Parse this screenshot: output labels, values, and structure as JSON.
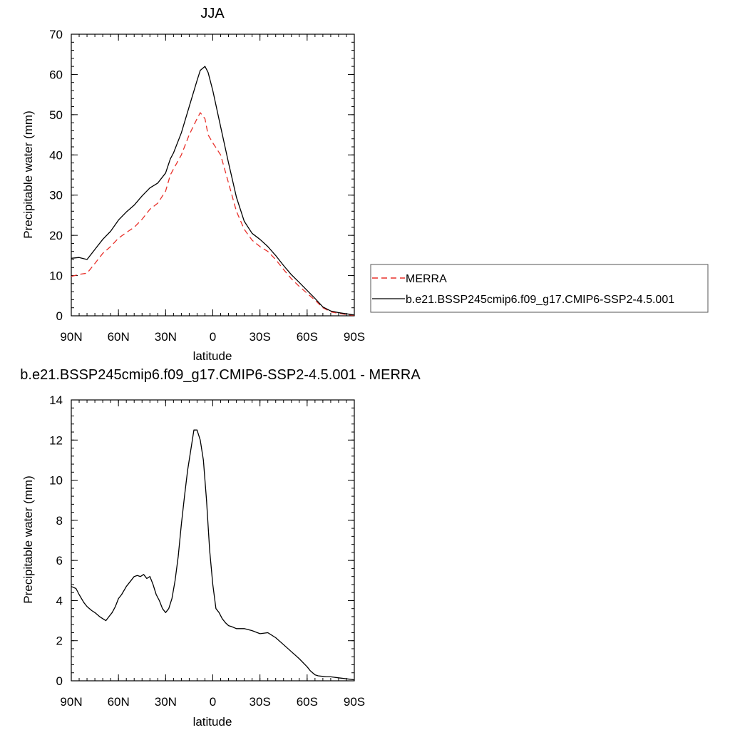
{
  "chart_data": [
    {
      "type": "line",
      "title": "JJA",
      "xlabel": "latitude",
      "ylabel": "Precipitable water (mm)",
      "xlim": [
        90,
        -90
      ],
      "ylim": [
        0,
        70
      ],
      "xticks": [
        90,
        60,
        30,
        0,
        -30,
        -60,
        -90
      ],
      "xticklabels": [
        "90N",
        "60N",
        "30N",
        "0",
        "30S",
        "60S",
        "90S"
      ],
      "yticks": [
        0,
        10,
        20,
        30,
        40,
        50,
        60,
        70
      ],
      "yticklabels": [
        "0",
        "10",
        "20",
        "30",
        "40",
        "50",
        "60",
        "70"
      ],
      "legend": "right-middle",
      "series": [
        {
          "name": "MERRA",
          "color": "#e8302a",
          "dash": "dashed",
          "x": [
            90,
            85,
            80,
            75,
            70,
            65,
            60,
            55,
            50,
            45,
            40,
            35,
            30,
            27,
            25,
            20,
            15,
            10,
            8,
            5,
            3,
            0,
            -5,
            -10,
            -15,
            -20,
            -25,
            -30,
            -35,
            -40,
            -45,
            -50,
            -55,
            -60,
            -65,
            -70,
            -75,
            -80,
            -85,
            -90
          ],
          "y": [
            9.8,
            10.3,
            10.6,
            13.0,
            15.5,
            17.2,
            19.3,
            20.7,
            22.0,
            24.0,
            26.5,
            28.0,
            31.0,
            35.0,
            36.5,
            40.0,
            45.0,
            49.0,
            50.5,
            49.0,
            45.0,
            43.0,
            40.0,
            33.0,
            26.0,
            21.5,
            18.8,
            17.2,
            16.0,
            14.0,
            11.5,
            9.2,
            7.3,
            5.6,
            3.9,
            2.0,
            1.0,
            0.6,
            0.3,
            0.1
          ]
        },
        {
          "name": "b.e21.BSSP245cmip6.f09_g17.CMIP6-SSP2-4.5.001",
          "color": "#000000",
          "dash": "solid",
          "x": [
            90,
            85,
            80,
            75,
            70,
            65,
            60,
            55,
            50,
            45,
            40,
            35,
            30,
            27,
            25,
            20,
            15,
            10,
            8,
            5,
            3,
            0,
            -5,
            -10,
            -15,
            -20,
            -25,
            -30,
            -35,
            -40,
            -45,
            -50,
            -55,
            -60,
            -65,
            -70,
            -75,
            -80,
            -85,
            -90
          ],
          "y": [
            14.3,
            14.5,
            14.0,
            16.5,
            19.0,
            21.0,
            23.8,
            25.8,
            27.5,
            29.8,
            31.8,
            33.0,
            35.5,
            39.0,
            40.5,
            45.5,
            52.0,
            58.5,
            61.0,
            62.0,
            60.5,
            56.0,
            47.0,
            38.0,
            29.5,
            23.5,
            20.5,
            19.0,
            17.2,
            15.0,
            12.5,
            10.2,
            8.3,
            6.3,
            4.3,
            2.2,
            1.2,
            0.8,
            0.5,
            0.2
          ]
        }
      ]
    },
    {
      "type": "line",
      "title": "b.e21.BSSP245cmip6.f09_g17.CMIP6-SSP2-4.5.001 - MERRA",
      "xlabel": "latitude",
      "ylabel": "Precipitable water (mm)",
      "xlim": [
        90,
        -90
      ],
      "ylim": [
        0,
        14
      ],
      "xticks": [
        90,
        60,
        30,
        0,
        -30,
        -60,
        -90
      ],
      "xticklabels": [
        "90N",
        "60N",
        "30N",
        "0",
        "30S",
        "60S",
        "90S"
      ],
      "yticks": [
        0,
        2,
        4,
        6,
        8,
        10,
        12,
        14
      ],
      "yticklabels": [
        "0",
        "2",
        "4",
        "6",
        "8",
        "10",
        "12",
        "14"
      ],
      "series": [
        {
          "color": "#000000",
          "dash": "solid",
          "x": [
            90,
            87,
            85,
            82,
            80,
            77,
            75,
            72,
            70,
            68,
            66,
            64,
            62,
            60,
            58,
            55,
            52,
            50,
            48,
            46,
            44,
            42,
            40,
            38,
            36,
            34,
            32,
            30,
            28,
            26,
            24,
            22,
            20,
            18,
            16,
            14,
            12,
            10,
            8,
            6,
            4,
            2,
            0,
            -2,
            -4,
            -6,
            -8,
            -10,
            -12,
            -15,
            -20,
            -25,
            -30,
            -35,
            -40,
            -45,
            -50,
            -55,
            -60,
            -62,
            -65,
            -67,
            -70,
            -72,
            -75,
            -80,
            -85,
            -90
          ],
          "y": [
            4.7,
            4.6,
            4.3,
            3.9,
            3.7,
            3.5,
            3.4,
            3.2,
            3.1,
            3.0,
            3.2,
            3.4,
            3.7,
            4.1,
            4.3,
            4.7,
            5.0,
            5.2,
            5.25,
            5.2,
            5.3,
            5.1,
            5.2,
            4.8,
            4.3,
            4.0,
            3.6,
            3.4,
            3.6,
            4.1,
            5.0,
            6.2,
            7.8,
            9.2,
            10.5,
            11.5,
            12.5,
            12.5,
            12.0,
            11.0,
            9.0,
            6.5,
            4.8,
            3.6,
            3.4,
            3.1,
            2.9,
            2.75,
            2.7,
            2.6,
            2.6,
            2.5,
            2.35,
            2.4,
            2.15,
            1.8,
            1.45,
            1.1,
            0.7,
            0.5,
            0.3,
            0.25,
            0.22,
            0.2,
            0.2,
            0.15,
            0.1,
            0.05
          ]
        }
      ]
    }
  ]
}
